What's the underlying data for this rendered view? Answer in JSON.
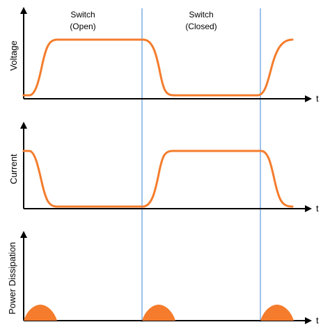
{
  "phases": [
    {
      "line1": "Switch",
      "line2": "(Open)"
    },
    {
      "line1": "Switch",
      "line2": "(Closed)"
    }
  ],
  "panels": [
    {
      "ylabel": "Voltage",
      "xlabel": "t"
    },
    {
      "ylabel": "Current",
      "xlabel": "t"
    },
    {
      "ylabel": "Power Dissipation",
      "xlabel": "t"
    }
  ],
  "colors": {
    "waveform": "#f47c2c",
    "divider": "#3a86d4",
    "axis": "#000000"
  }
}
